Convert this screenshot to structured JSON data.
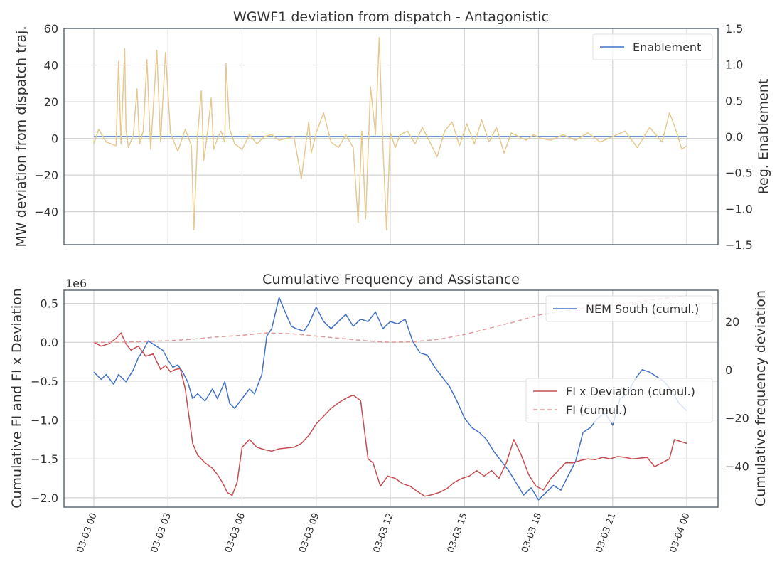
{
  "chart_data": [
    {
      "type": "line",
      "title": "WGWF1 deviation from dispatch - Antagonistic",
      "ylabel": "MW deviation from dispatch traj.",
      "y2label": "Reg. Enablement",
      "ylim": [
        -58,
        60
      ],
      "y2lim": [
        -1.5,
        1.5
      ],
      "yticks": [
        -40,
        -20,
        0,
        20,
        40,
        60
      ],
      "y2ticks": [
        -1.5,
        -1.0,
        -0.5,
        0.0,
        0.5,
        1.0,
        1.5
      ],
      "ytick_labels": [
        "−40",
        "−20",
        "0",
        "20",
        "40",
        "60"
      ],
      "y2tick_labels": [
        "−1.5",
        "−1.0",
        "−0.5",
        "0.0",
        "0.5",
        "1.0",
        "1.5"
      ],
      "x_range_hours": [
        0,
        24
      ],
      "legend": {
        "placement": "top-right",
        "entries": [
          "Enablement"
        ]
      },
      "grid": true,
      "series": [
        {
          "name": "Enablement",
          "axis": "right",
          "color": "#4472c4",
          "x": [
            0,
            24
          ],
          "y": [
            0.0,
            0.0
          ]
        },
        {
          "axis": "left",
          "color": "#e6c992",
          "x": [
            0.0,
            0.2,
            0.5,
            0.9,
            1.0,
            1.1,
            1.25,
            1.3,
            1.4,
            1.6,
            1.75,
            1.85,
            2.0,
            2.15,
            2.3,
            2.55,
            2.7,
            2.9,
            3.1,
            3.4,
            3.7,
            3.95,
            4.05,
            4.2,
            4.35,
            4.45,
            4.6,
            4.75,
            4.85,
            5.0,
            5.15,
            5.3,
            5.35,
            5.5,
            5.7,
            6.0,
            6.3,
            6.6,
            6.9,
            7.2,
            7.5,
            7.8,
            8.1,
            8.4,
            8.7,
            8.8,
            9.0,
            9.3,
            9.6,
            9.9,
            10.2,
            10.5,
            10.7,
            10.85,
            11.0,
            11.2,
            11.4,
            11.55,
            11.7,
            11.85,
            12.0,
            12.2,
            12.4,
            12.7,
            13.0,
            13.3,
            13.6,
            13.9,
            14.2,
            14.5,
            14.8,
            15.1,
            15.4,
            15.7,
            16.0,
            16.3,
            16.6,
            16.9,
            17.2,
            17.5,
            17.8,
            18.1,
            18.5,
            19.0,
            19.5,
            20.0,
            20.5,
            21.0,
            21.5,
            22.0,
            22.5,
            23.0,
            23.3,
            23.6,
            23.8,
            24.0
          ],
          "y": [
            -3,
            5,
            -2,
            -4,
            42,
            -3,
            49,
            5,
            -5,
            2,
            27,
            -3,
            4,
            43,
            -6,
            48,
            -2,
            47,
            3,
            -7,
            5,
            -4,
            -50,
            2,
            26,
            -12,
            3,
            22,
            -6,
            0,
            4,
            -2,
            41,
            5,
            -3,
            -6,
            2,
            -3,
            1,
            2,
            -1,
            0,
            1,
            -22,
            9,
            -8,
            3,
            14,
            -2,
            -5,
            2,
            -5,
            -46,
            4,
            -44,
            28,
            2,
            55,
            -4,
            -50,
            3,
            -5,
            2,
            4,
            -3,
            6,
            -2,
            -10,
            4,
            9,
            -4,
            8,
            -3,
            10,
            -2,
            6,
            -8,
            3,
            1,
            -1,
            2,
            0,
            -1,
            2,
            -1,
            3,
            -2,
            1,
            4,
            -5,
            6,
            -2,
            14,
            3,
            -6,
            -4
          ]
        }
      ]
    },
    {
      "type": "line",
      "title": "Cumulative Frequency and Assistance",
      "ylabel": "Cumulative FI and FI x Deviation",
      "y2label": "Cumulative frequency deviation",
      "offset_text": "1e6",
      "ylim": [
        -2.12,
        0.67
      ],
      "y2lim": [
        -57,
        33
      ],
      "yticks": [
        -2.0,
        -1.5,
        -1.0,
        -0.5,
        0.0,
        0.5
      ],
      "y2ticks": [
        -40,
        -20,
        0,
        20
      ],
      "ytick_labels": [
        "−2.0",
        "−1.5",
        "−1.0",
        "−0.5",
        "0.0",
        "0.5"
      ],
      "y2tick_labels": [
        "−40",
        "−20",
        "0",
        "20"
      ],
      "x_range_hours": [
        0,
        24
      ],
      "xtick_labels": [
        "03-03 00",
        "03-03 03",
        "03-03 06",
        "03-03 09",
        "03-03 12",
        "03-03 15",
        "03-03 18",
        "03-03 21",
        "03-04 00"
      ],
      "legend": [
        {
          "placement": "top-right",
          "entries": [
            "NEM South (cumul.)"
          ]
        },
        {
          "placement": "center-right",
          "entries": [
            "FI x Deviation (cumul.)",
            "FI (cumul.)"
          ]
        }
      ],
      "grid": true,
      "series": [
        {
          "name": "NEM South (cumul.)",
          "axis": "right",
          "color": "#4472c4",
          "x": [
            0.0,
            0.3,
            0.5,
            0.8,
            1.0,
            1.3,
            1.6,
            1.8,
            2.0,
            2.2,
            2.5,
            2.8,
            3.0,
            3.2,
            3.4,
            3.6,
            3.8,
            4.0,
            4.2,
            4.5,
            4.8,
            5.0,
            5.3,
            5.5,
            5.7,
            6.0,
            6.3,
            6.5,
            6.8,
            7.0,
            7.2,
            7.5,
            7.7,
            8.0,
            8.2,
            8.5,
            8.7,
            9.0,
            9.3,
            9.6,
            9.9,
            10.2,
            10.5,
            10.8,
            11.1,
            11.4,
            11.7,
            12.0,
            12.3,
            12.6,
            12.9,
            13.2,
            13.5,
            13.8,
            14.1,
            14.4,
            14.7,
            15.0,
            15.3,
            15.6,
            15.9,
            16.2,
            16.5,
            16.8,
            17.1,
            17.4,
            17.7,
            18.0,
            18.3,
            18.6,
            18.9,
            19.2,
            19.5,
            19.8,
            20.1,
            20.4,
            20.7,
            21.0,
            21.3,
            21.6,
            21.9,
            22.2,
            22.5,
            22.8,
            23.1,
            23.4,
            23.7,
            24.0
          ],
          "y": [
            -1,
            -4,
            -2,
            -6,
            -2,
            -5,
            0,
            5,
            8,
            12,
            10,
            8,
            4,
            1,
            2,
            -1,
            -5,
            -12,
            -10,
            -13,
            -8,
            -12,
            -5,
            -14,
            -16,
            -12,
            -8,
            -10,
            -2,
            14,
            17,
            30,
            25,
            18,
            17,
            16,
            19,
            26,
            20,
            17,
            20,
            23,
            18,
            21,
            20,
            24,
            17,
            20,
            19,
            21,
            12,
            7,
            6,
            1,
            -3,
            -7,
            -13,
            -20,
            -24,
            -26,
            -29,
            -34,
            -38,
            -42,
            -47,
            -52,
            -49,
            -54,
            -51,
            -48,
            -50,
            -44,
            -38,
            -26,
            -24,
            -20,
            -18,
            -23,
            -12,
            -10,
            -4,
            0,
            -1,
            -3,
            -5,
            -9,
            -14,
            -17
          ]
        },
        {
          "name": "FI x Deviation (cumul.)",
          "axis": "left",
          "color": "#c44e52",
          "x": [
            0.0,
            0.3,
            0.6,
            0.9,
            1.1,
            1.3,
            1.5,
            1.8,
            2.1,
            2.4,
            2.7,
            2.9,
            3.1,
            3.3,
            3.5,
            3.7,
            4.0,
            4.2,
            4.5,
            4.8,
            5.0,
            5.2,
            5.4,
            5.6,
            5.8,
            6.0,
            6.3,
            6.6,
            6.9,
            7.2,
            7.5,
            7.8,
            8.1,
            8.4,
            8.7,
            9.0,
            9.3,
            9.6,
            9.9,
            10.2,
            10.5,
            10.8,
            11.1,
            11.3,
            11.6,
            11.9,
            12.2,
            12.5,
            12.8,
            13.1,
            13.4,
            13.7,
            14.0,
            14.3,
            14.6,
            14.9,
            15.2,
            15.5,
            15.8,
            16.1,
            16.4,
            16.7,
            17.0,
            17.3,
            17.6,
            17.9,
            18.2,
            18.5,
            18.8,
            19.1,
            19.4,
            19.7,
            20.0,
            20.3,
            20.6,
            20.9,
            21.2,
            21.5,
            21.8,
            22.1,
            22.4,
            22.7,
            23.0,
            23.3,
            23.5,
            23.7,
            24.0
          ],
          "y": [
            0.0,
            -0.05,
            -0.02,
            0.05,
            0.12,
            -0.02,
            -0.1,
            -0.05,
            -0.18,
            -0.15,
            -0.35,
            -0.3,
            -0.38,
            -0.35,
            -0.34,
            -0.6,
            -1.3,
            -1.45,
            -1.55,
            -1.62,
            -1.7,
            -1.8,
            -1.93,
            -1.97,
            -1.8,
            -1.35,
            -1.25,
            -1.35,
            -1.38,
            -1.4,
            -1.37,
            -1.36,
            -1.35,
            -1.3,
            -1.2,
            -1.05,
            -0.95,
            -0.85,
            -0.78,
            -0.72,
            -0.68,
            -0.75,
            -1.5,
            -1.55,
            -1.85,
            -1.72,
            -1.75,
            -1.82,
            -1.85,
            -1.92,
            -1.98,
            -1.96,
            -1.93,
            -1.88,
            -1.8,
            -1.75,
            -1.72,
            -1.65,
            -1.72,
            -1.65,
            -1.75,
            -1.55,
            -1.25,
            -1.45,
            -1.7,
            -1.85,
            -1.9,
            -1.75,
            -1.65,
            -1.55,
            -1.55,
            -1.52,
            -1.5,
            -1.51,
            -1.48,
            -1.5,
            -1.47,
            -1.48,
            -1.5,
            -1.49,
            -1.48,
            -1.6,
            -1.55,
            -1.5,
            -1.25,
            -1.27,
            -1.3
          ]
        },
        {
          "name": "FI (cumul.)",
          "axis": "left",
          "color": "#dd9a9a",
          "dashed": true,
          "x": [
            0,
            1,
            2,
            3,
            4,
            5,
            6,
            7,
            8,
            9,
            10,
            11,
            12,
            13,
            14,
            15,
            16,
            17,
            18,
            19,
            20,
            21,
            22,
            23,
            24
          ],
          "y": [
            0.0,
            0.0,
            0.01,
            0.02,
            0.04,
            0.07,
            0.09,
            0.12,
            0.11,
            0.08,
            0.05,
            0.02,
            0.0,
            0.01,
            0.04,
            0.1,
            0.18,
            0.26,
            0.35,
            0.4,
            0.45,
            0.48,
            0.52,
            0.56,
            0.6
          ]
        }
      ]
    }
  ]
}
